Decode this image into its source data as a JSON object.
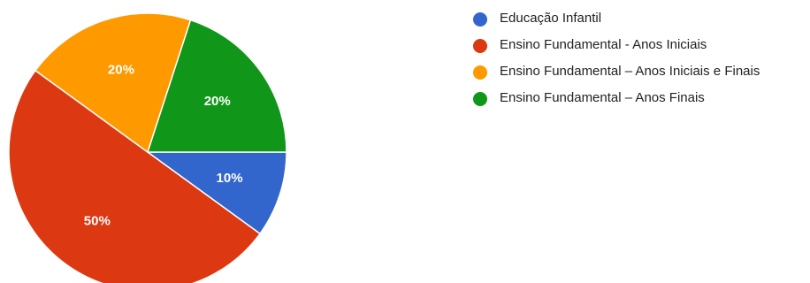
{
  "chart_data": {
    "type": "pie",
    "title": "",
    "legend_position": "right",
    "slices": [
      {
        "label": "Educação Infantil",
        "value": 10,
        "display": "10%",
        "color": "#3366cc"
      },
      {
        "label": "Ensino Fundamental - Anos Iniciais",
        "value": 50,
        "display": "50%",
        "color": "#dc3912"
      },
      {
        "label": "Ensino Fundamental – Anos Iniciais e Finais",
        "value": 20,
        "display": "20%",
        "color": "#ff9900"
      },
      {
        "label": "Ensino Fundamental – Anos Finais",
        "value": 20,
        "display": "20%",
        "color": "#109618"
      }
    ]
  }
}
